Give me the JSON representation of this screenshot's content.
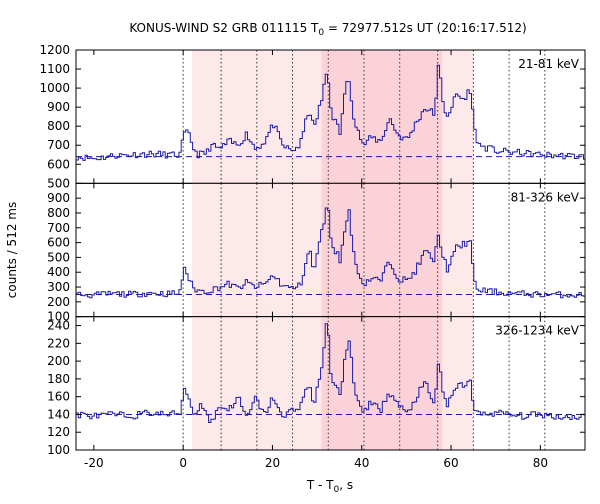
{
  "chart_data": {
    "type": "line",
    "title": "KONUS-WIND S2 GRB 011115 T",
    "title_sub": "0",
    "title_tail": " = 72977.512s UT (20:16:17.512)",
    "xlabel": "T - T",
    "xlabel_sub": "0",
    "xlabel_tail": ", s",
    "ylabel": "counts / 512 ms",
    "xlim": [
      -24,
      90
    ],
    "x_ticks": [
      -20,
      0,
      20,
      40,
      60,
      80
    ],
    "bin_width_s": 0.512,
    "shaded_intervals": [
      {
        "from": 2,
        "to": 65,
        "color": "#fde8ea"
      },
      {
        "from": 31,
        "to": 58,
        "color": "#fbd2d8"
      }
    ],
    "vertical_markers": [
      0,
      8.5,
      16.5,
      24.5,
      32.5,
      40.5,
      48.5,
      57,
      65,
      73,
      81
    ],
    "series": [
      {
        "name": "21-81 keV",
        "ylim": [
          500,
          1200
        ],
        "y_ticks": [
          500,
          600,
          700,
          800,
          900,
          1000,
          1100,
          1200
        ],
        "background": 640,
        "values": [
          {
            "t": -24,
            "y": 640
          },
          {
            "t": -20,
            "y": 630
          },
          {
            "t": -16,
            "y": 645
          },
          {
            "t": -12,
            "y": 650
          },
          {
            "t": -8,
            "y": 655
          },
          {
            "t": -4,
            "y": 650
          },
          {
            "t": -1,
            "y": 648
          },
          {
            "t": 0,
            "y": 760
          },
          {
            "t": 1,
            "y": 760
          },
          {
            "t": 2,
            "y": 690
          },
          {
            "t": 3,
            "y": 650
          },
          {
            "t": 5,
            "y": 660
          },
          {
            "t": 6,
            "y": 700
          },
          {
            "t": 8,
            "y": 680
          },
          {
            "t": 10,
            "y": 720
          },
          {
            "t": 12,
            "y": 700
          },
          {
            "t": 14,
            "y": 760
          },
          {
            "t": 16,
            "y": 680
          },
          {
            "t": 18,
            "y": 720
          },
          {
            "t": 20,
            "y": 810
          },
          {
            "t": 22,
            "y": 700
          },
          {
            "t": 24,
            "y": 670
          },
          {
            "t": 26,
            "y": 700
          },
          {
            "t": 28,
            "y": 900
          },
          {
            "t": 29,
            "y": 780
          },
          {
            "t": 31,
            "y": 960
          },
          {
            "t": 32,
            "y": 1100
          },
          {
            "t": 33,
            "y": 870
          },
          {
            "t": 35,
            "y": 760
          },
          {
            "t": 36,
            "y": 1000
          },
          {
            "t": 37,
            "y": 1040
          },
          {
            "t": 38,
            "y": 850
          },
          {
            "t": 40,
            "y": 700
          },
          {
            "t": 42,
            "y": 740
          },
          {
            "t": 44,
            "y": 720
          },
          {
            "t": 46,
            "y": 840
          },
          {
            "t": 48,
            "y": 750
          },
          {
            "t": 50,
            "y": 730
          },
          {
            "t": 52,
            "y": 820
          },
          {
            "t": 54,
            "y": 900
          },
          {
            "t": 56,
            "y": 860
          },
          {
            "t": 57,
            "y": 1130
          },
          {
            "t": 58,
            "y": 900
          },
          {
            "t": 59,
            "y": 860
          },
          {
            "t": 61,
            "y": 960
          },
          {
            "t": 63,
            "y": 940
          },
          {
            "t": 64,
            "y": 1010
          },
          {
            "t": 65,
            "y": 780
          },
          {
            "t": 66,
            "y": 700
          },
          {
            "t": 70,
            "y": 670
          },
          {
            "t": 75,
            "y": 660
          },
          {
            "t": 80,
            "y": 650
          },
          {
            "t": 85,
            "y": 645
          },
          {
            "t": 90,
            "y": 640
          }
        ]
      },
      {
        "name": "81-326 keV",
        "ylim": [
          100,
          1000
        ],
        "y_ticks": [
          100,
          200,
          300,
          400,
          500,
          600,
          700,
          800,
          900
        ],
        "background": 250,
        "values": [
          {
            "t": -24,
            "y": 250
          },
          {
            "t": -20,
            "y": 245
          },
          {
            "t": -16,
            "y": 255
          },
          {
            "t": -12,
            "y": 250
          },
          {
            "t": -8,
            "y": 260
          },
          {
            "t": -4,
            "y": 255
          },
          {
            "t": -1,
            "y": 258
          },
          {
            "t": 0,
            "y": 440
          },
          {
            "t": 1,
            "y": 360
          },
          {
            "t": 2,
            "y": 290
          },
          {
            "t": 4,
            "y": 270
          },
          {
            "t": 6,
            "y": 280
          },
          {
            "t": 8,
            "y": 300
          },
          {
            "t": 10,
            "y": 320
          },
          {
            "t": 12,
            "y": 290
          },
          {
            "t": 14,
            "y": 330
          },
          {
            "t": 16,
            "y": 300
          },
          {
            "t": 18,
            "y": 320
          },
          {
            "t": 20,
            "y": 380
          },
          {
            "t": 22,
            "y": 310
          },
          {
            "t": 24,
            "y": 290
          },
          {
            "t": 26,
            "y": 310
          },
          {
            "t": 28,
            "y": 560
          },
          {
            "t": 29,
            "y": 400
          },
          {
            "t": 31,
            "y": 700
          },
          {
            "t": 32,
            "y": 880
          },
          {
            "t": 33,
            "y": 600
          },
          {
            "t": 35,
            "y": 480
          },
          {
            "t": 36,
            "y": 700
          },
          {
            "t": 37,
            "y": 820
          },
          {
            "t": 38,
            "y": 500
          },
          {
            "t": 40,
            "y": 320
          },
          {
            "t": 42,
            "y": 360
          },
          {
            "t": 44,
            "y": 340
          },
          {
            "t": 46,
            "y": 480
          },
          {
            "t": 48,
            "y": 360
          },
          {
            "t": 50,
            "y": 340
          },
          {
            "t": 52,
            "y": 420
          },
          {
            "t": 54,
            "y": 540
          },
          {
            "t": 56,
            "y": 480
          },
          {
            "t": 57,
            "y": 660
          },
          {
            "t": 58,
            "y": 500
          },
          {
            "t": 59,
            "y": 420
          },
          {
            "t": 61,
            "y": 560
          },
          {
            "t": 63,
            "y": 600
          },
          {
            "t": 64,
            "y": 620
          },
          {
            "t": 65,
            "y": 320
          },
          {
            "t": 66,
            "y": 280
          },
          {
            "t": 70,
            "y": 265
          },
          {
            "t": 75,
            "y": 255
          },
          {
            "t": 80,
            "y": 250
          },
          {
            "t": 85,
            "y": 248
          },
          {
            "t": 90,
            "y": 245
          }
        ]
      },
      {
        "name": "326-1234 keV",
        "ylim": [
          100,
          250
        ],
        "y_ticks": [
          100,
          120,
          140,
          160,
          180,
          200,
          220,
          240
        ],
        "background": 140,
        "values": [
          {
            "t": -24,
            "y": 140
          },
          {
            "t": -20,
            "y": 138
          },
          {
            "t": -16,
            "y": 140
          },
          {
            "t": -12,
            "y": 138
          },
          {
            "t": -8,
            "y": 142
          },
          {
            "t": -4,
            "y": 140
          },
          {
            "t": -1,
            "y": 141
          },
          {
            "t": 0,
            "y": 170
          },
          {
            "t": 1,
            "y": 160
          },
          {
            "t": 2,
            "y": 140
          },
          {
            "t": 4,
            "y": 152
          },
          {
            "t": 6,
            "y": 130
          },
          {
            "t": 8,
            "y": 150
          },
          {
            "t": 10,
            "y": 145
          },
          {
            "t": 12,
            "y": 160
          },
          {
            "t": 14,
            "y": 135
          },
          {
            "t": 16,
            "y": 158
          },
          {
            "t": 18,
            "y": 140
          },
          {
            "t": 20,
            "y": 160
          },
          {
            "t": 22,
            "y": 135
          },
          {
            "t": 24,
            "y": 145
          },
          {
            "t": 26,
            "y": 150
          },
          {
            "t": 28,
            "y": 175
          },
          {
            "t": 29,
            "y": 150
          },
          {
            "t": 31,
            "y": 200
          },
          {
            "t": 32,
            "y": 245
          },
          {
            "t": 33,
            "y": 180
          },
          {
            "t": 35,
            "y": 160
          },
          {
            "t": 36,
            "y": 210
          },
          {
            "t": 37,
            "y": 225
          },
          {
            "t": 38,
            "y": 170
          },
          {
            "t": 40,
            "y": 140
          },
          {
            "t": 42,
            "y": 155
          },
          {
            "t": 44,
            "y": 145
          },
          {
            "t": 46,
            "y": 165
          },
          {
            "t": 48,
            "y": 150
          },
          {
            "t": 50,
            "y": 140
          },
          {
            "t": 52,
            "y": 160
          },
          {
            "t": 54,
            "y": 175
          },
          {
            "t": 56,
            "y": 150
          },
          {
            "t": 57,
            "y": 200
          },
          {
            "t": 58,
            "y": 165
          },
          {
            "t": 59,
            "y": 150
          },
          {
            "t": 61,
            "y": 170
          },
          {
            "t": 63,
            "y": 175
          },
          {
            "t": 64,
            "y": 178
          },
          {
            "t": 65,
            "y": 145
          },
          {
            "t": 66,
            "y": 140
          },
          {
            "t": 70,
            "y": 142
          },
          {
            "t": 75,
            "y": 138
          },
          {
            "t": 80,
            "y": 140
          },
          {
            "t": 85,
            "y": 137
          },
          {
            "t": 90,
            "y": 138
          }
        ]
      }
    ],
    "colors": {
      "line": "#1a1aa6",
      "background_fit": "#1a1aa6",
      "marker": "#333333",
      "axis": "#000000"
    }
  }
}
